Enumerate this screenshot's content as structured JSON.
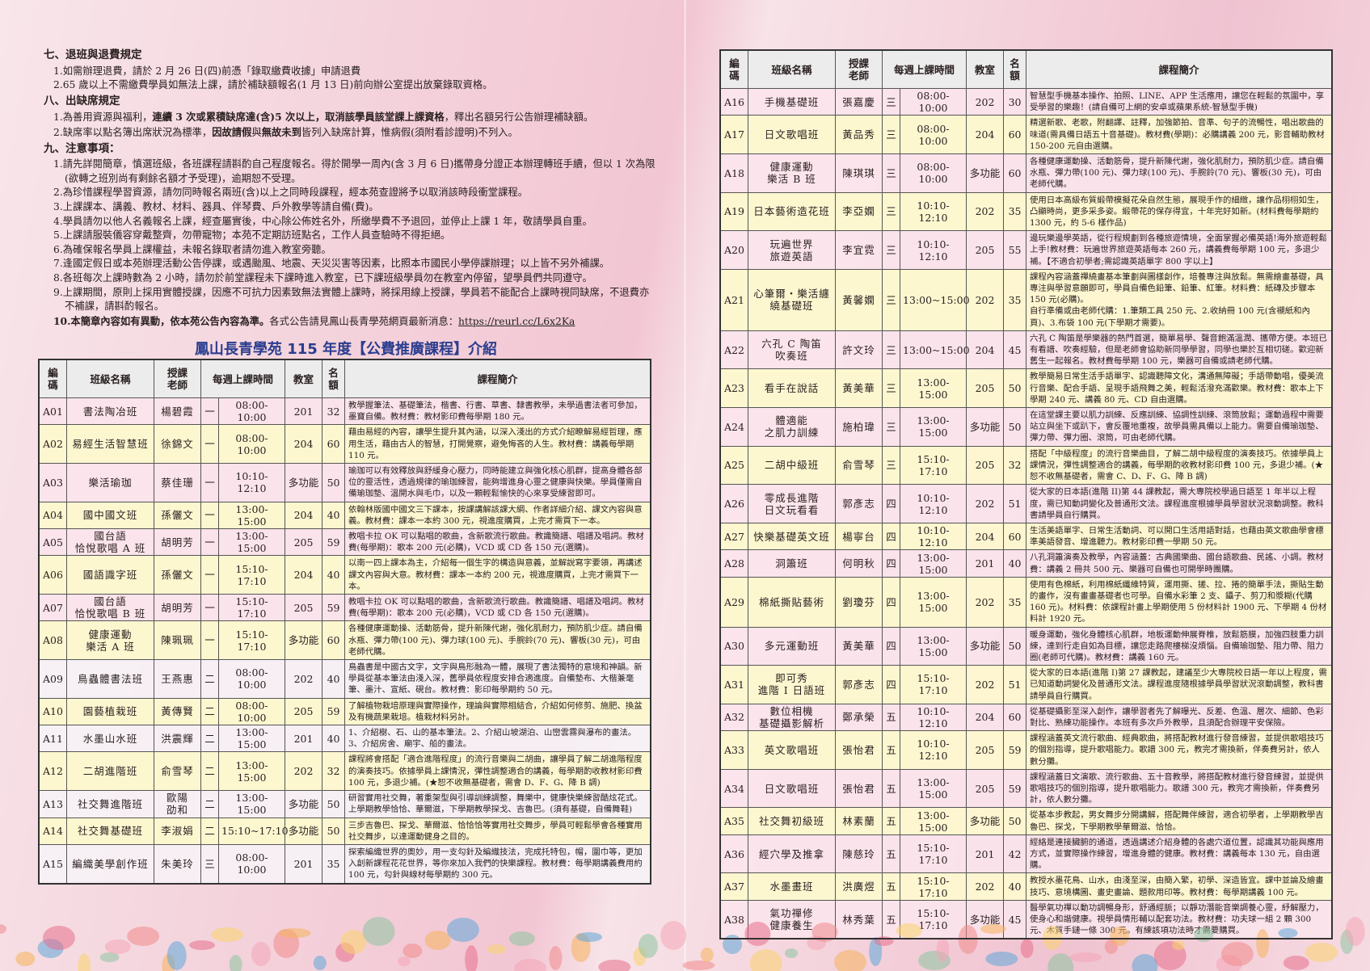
{
  "rules": {
    "sections": [
      {
        "heading": "七、退班與退費規定",
        "items": [
          {
            "text": "1.如需辦理退費，請於 2 月 26 日(四)前憑「錄取繳費收據」申請退費"
          },
          {
            "text": "2.65 歲以上不需繳費學員如無法上課，請於補缺額報名(1 月 13 日)前向辦公室提出放棄錄取資格。"
          }
        ]
      },
      {
        "heading": "八、出缺席規定",
        "items": [
          {
            "pre": "1.為善用資源與福利，",
            "bold": "連續 3 次或累積缺席達(含)5 次以上，取消該學員該堂課上課資格",
            "post": "，釋出名額另行公告辦理補缺額。"
          },
          {
            "pre": "2.缺席率以點名簿出席狀況為標準，",
            "bold": "因故請假",
            "mid": "與",
            "bold2": "無故未到",
            "post": "皆列入缺席計算，惟病假(須附看診證明)不列入。"
          }
        ]
      },
      {
        "heading": "九、注意事項：",
        "items": [
          {
            "text": "1.請先詳閱簡章，慎選班級，各班課程請斟酌自己程度報名。得於開學一周內(含 3 月 6 日)攜帶身分證正本辦理轉班手續，但以 1 次為限(欲轉之班別尚有剩餘名額才予受理)，逾期恕不受理。"
          },
          {
            "text": "2.為珍惜課程學習資源，請勿同時報名兩班(含)以上之同時段課程，經本苑查證將予以取消該時段衝堂課程。"
          },
          {
            "text": "3.上課課本、講義、教材、材料、器具、伴琴費、戶外教學等請自備(費)。"
          },
          {
            "text": "4.學員請勿以他人名義報名上課，經查屬實後，中心除公佈姓名外，所繳學費不予退回，並停止上課 1 年，敬請學員自重。"
          },
          {
            "text": "5.上課請服裝儀容穿戴整齊，勿帶寵物；本苑不定期訪班點名，工作人員查驗時不得拒絕。"
          },
          {
            "text": "6.為確保報名學員上課權益，未報名錄取者請勿進入教室旁聽。"
          },
          {
            "text": "7.逢國定假日或本苑辦理活動公告停課，或遇颱風、地震、天災災害等因素，比照本市國民小學停課辦理；以上皆不另外補課。"
          },
          {
            "text": "8.各班每次上課時數為 2 小時，請勿於前堂課程未下課時進入教室，已下課班級學員勿在教室內停留，望學員們共同遵守。"
          },
          {
            "text": "9.上課期間，原則上採用實體授課，因應不可抗力因素致無法實體上課時，將採用線上授課，學員若不能配合上課時視同缺席，不退費亦不補課，請斟酌報名。"
          },
          {
            "bold": "10.本簡章內容如有異動，依本苑公告內容為準。",
            "post": "各式公告請見鳳山長青學苑網頁最新消息：",
            "link": "https://reurl.cc/L6x2Ka"
          }
        ]
      }
    ]
  },
  "title": "鳳山長青學苑 115 年度【公費推廣課程】介紹",
  "table_headers": {
    "code": "編碼",
    "name": "班級名稱",
    "teacher": "授課老師",
    "time": "每週上課時間",
    "room": "教室",
    "quota": "名額",
    "desc": "課程簡介"
  },
  "colors": {
    "title": "#2a3d8f",
    "row_pink": "#fae2ea",
    "row_yellow": "#fdf7cd",
    "header": "#ececec"
  },
  "courses_left": [
    {
      "code": "A01",
      "name": "書法陶冶班",
      "teacher": "楊碧霞",
      "day": "一",
      "time": "08:00-10:00",
      "room": "201",
      "quota": "32",
      "desc": "教學握筆法、基礎筆法，楷書、行書、草書、隸書教學，未學過書法者可參加，墨寶自備。教材費：教材影印費每學期 180 元。"
    },
    {
      "code": "A02",
      "name": "易經生活智慧班",
      "teacher": "徐錦文",
      "day": "一",
      "time": "08:00-10:00",
      "room": "204",
      "quota": "60",
      "desc": "藉由易經的內容，讓學生提升其內涵，以深入淺出的方式介紹瞭解易經哲理，應用生活，藉由古人的智慧，打開覺察，避免悔吝的人生。教材費：講義每學期 110 元。"
    },
    {
      "code": "A03",
      "name": "樂活瑜珈",
      "teacher": "蔡佳珊",
      "day": "一",
      "time": "10:10-12:10",
      "room": "多功能",
      "quota": "50",
      "desc": "瑜珈可以有效釋放與舒緩身心壓力，同時能建立與強化核心肌群，提高身體各部位的靈活性，透過規律的瑜珈練習，能夠增進身心靈之健康與快樂。學員僅需自備瑜珈墊、溫開水與毛巾，以及一顆輕鬆愉快的心來享受練習即可。"
    },
    {
      "code": "A04",
      "name": "國中國文班",
      "teacher": "孫儷文",
      "day": "一",
      "time": "13:00-15:00",
      "room": "204",
      "quota": "40",
      "desc": "依翰林版國中國文三下課本，按課講解該課大綱、作者詳細介紹、課文內容與意義。教材費：課本一本約 300 元，視進度購買，上完才需買下一本。"
    },
    {
      "code": "A05",
      "name": "國台語\n恰悅歌唱 A 班",
      "teacher": "胡明芳",
      "day": "一",
      "time": "13:00-15:00",
      "room": "205",
      "quota": "59",
      "desc": "教唱卡拉 OK 可以點唱的歌曲，含新歌流行歌曲。教識簡譜、唱譜及唱詞。教材費(每學期)：歌本 200 元(必購)，VCD 或 CD 各 150 元(選購)。"
    },
    {
      "code": "A06",
      "name": "國語識字班",
      "teacher": "孫儷文",
      "day": "一",
      "time": "15:10-17:10",
      "room": "204",
      "quota": "40",
      "desc": "以南一四上課本為主，介紹每一個生字的構造與意義，並解說寫字要領，再講述課文內容與大意。教材費：課本一本約 200 元，視進度購買，上完才需買下一本。"
    },
    {
      "code": "A07",
      "name": "國台語\n恰悅歌唱 B 班",
      "teacher": "胡明芳",
      "day": "一",
      "time": "15:10-17:10",
      "room": "205",
      "quota": "59",
      "desc": "教唱卡拉 OK 可以點唱的歌曲，含新歌流行歌曲。教識簡譜、唱譜及唱詞。教材費(每學期)：歌本 200 元(必購)，VCD 或 CD 各 150 元(選購)。"
    },
    {
      "code": "A08",
      "name": "健康運動\n樂活 A 班",
      "teacher": "陳珮珮",
      "day": "一",
      "time": "15:10-17:10",
      "room": "多功能",
      "quota": "60",
      "desc": "各種健康運動操、活動筋骨，提升新陳代謝，強化肌耐力，預防肌少症。請自備水瓶、彈力帶(100 元)、彈力球(100 元)、手腕鈴(70 元)、響板(30 元)，可由老師代購。"
    },
    {
      "code": "A09",
      "name": "鳥蟲體書法班",
      "teacher": "王燕惠",
      "day": "二",
      "time": "08:00-10:00",
      "room": "202",
      "quota": "40",
      "desc": "鳥蟲書是中國古文字，文字與鳥形融為一體，展現了書法獨特的意境和神韻。新學員從基本筆法由淺入深，舊學員依程度安排合適進度。自備墊布、大楷兼毫筆、墨汁、宣紙、硯台。教材費：影印每學期約 50 元。"
    },
    {
      "code": "A10",
      "name": "園藝植栽班",
      "teacher": "黃傳賢",
      "day": "二",
      "time": "08:00-10:00",
      "room": "205",
      "quota": "59",
      "desc": "了解植物栽培原理與實際操作，理論與實際相結合，介紹如何修剪、施肥、換盆及有機蔬果栽培。植栽材料另計。"
    },
    {
      "code": "A11",
      "name": "水墨山水班",
      "teacher": "洪震輝",
      "day": "二",
      "time": "13:00-15:00",
      "room": "201",
      "quota": "40",
      "desc": "1、介紹樹、石、山的基本筆法。2、介紹山坡湖泊、山巒雲霧與瀑布的畫法。3、介紹房舍、廟宇、船的畫法。"
    },
    {
      "code": "A12",
      "name": "二胡進階班",
      "teacher": "俞雪琴",
      "day": "二",
      "time": "13:00-15:00",
      "room": "202",
      "quota": "32",
      "desc": "課程將會搭配「適合進階程度」的流行音樂與二胡曲，讓學員了解二胡進階程度的演奏技巧。依據學員上課情況，彈性調整適合的講義，每學期酌收教材影印費 100 元，多退少補。(★恕不收無基礎者，需會 D、F、G、降 B 調)"
    },
    {
      "code": "A13",
      "name": "社交舞進階班",
      "teacher": "歐陽\n劭和",
      "day": "二",
      "time": "13:00-15:00",
      "room": "多功能",
      "quota": "50",
      "desc": "研習實用社交舞，著重架型與引導訓練調整，舞樂中，健康快樂練習酷炫花式。上學期教學恰恰、華爾滋，下學期教學探戈、吉魯巴。(須有基礎，自備舞鞋)"
    },
    {
      "code": "A14",
      "name": "社交舞基礎班",
      "teacher": "李淑娟",
      "day": "二",
      "time": "15:10~17:10",
      "room": "多功能",
      "quota": "50",
      "desc": "三步吉魯巴、探戈、華爾滋、恰恰恰等實用社交舞步，學員可輕鬆學會各種實用社交舞步，以達運動健身之目的。"
    },
    {
      "code": "A15",
      "name": "編織美學創作班",
      "teacher": "朱美玲",
      "day": "三",
      "time": "08:00-10:00",
      "room": "201",
      "quota": "35",
      "desc": "探索編織世界的奧妙，用一支勾針及編織技法，完成托特包，帽，圍巾等，更加入創新課程花花世界，等你來加入我們的快樂課程。教材費：每學期講義費用約 100 元，勾針與線材每學期約 300 元。"
    }
  ],
  "courses_right": [
    {
      "code": "A16",
      "name": "手機基礎班",
      "teacher": "張嘉慶",
      "day": "三",
      "time": "08:00-10:00",
      "room": "202",
      "quota": "30",
      "desc": "智慧型手機基本操作、拍照、LINE、APP 生活應用，讓您在輕鬆的氛圍中，享受學習的樂趣！(請自備可上網的安卓或蘋果系統-智慧型手機)"
    },
    {
      "code": "A17",
      "name": "日文歌唱班",
      "teacher": "黃品秀",
      "day": "三",
      "time": "08:00-10:00",
      "room": "204",
      "quota": "60",
      "desc": "精選新歌、老歌，附翻譯、註釋，加強節拍、音準、句子的流暢性，唱出歌曲的味道(需具備日語五十音基礎)。教材費(學期)：必購講義 200 元，影音輔助教材 150-200 元自由選購。"
    },
    {
      "code": "A18",
      "name": "健康運動\n樂活 B 班",
      "teacher": "陳琪琪",
      "day": "三",
      "time": "08:00-10:00",
      "room": "多功能",
      "quota": "60",
      "desc": "各種健康運動操、活動筋骨，提升新陳代謝，強化肌耐力，預防肌少症。請自備水瓶、彈力帶(100 元)、彈力球(100 元)、手腕鈴(70 元)、響板(30 元)，可由老師代購。"
    },
    {
      "code": "A19",
      "name": "日本藝術造花班",
      "teacher": "李亞嫻",
      "day": "三",
      "time": "10:10-12:10",
      "room": "202",
      "quota": "35",
      "desc": "使用日本高級布質緞帶模擬花朵自然生態，展現手作的細緻，讓作品栩栩如生，凸顯時尚，更多采多姿。緞帶花的保存得宜，十年完好如新。(材料費每學期約 1300 元，約 5-6 樣作品)"
    },
    {
      "code": "A20",
      "name": "玩遍世界\n旅遊英語",
      "teacher": "李宜霓",
      "day": "三",
      "time": "10:10-12:10",
      "room": "205",
      "quota": "55",
      "desc": "邊玩樂邊學英語，從行程規劃到各種旅遊情境，全面掌握必備英語!海外旅遊輕鬆上手!教材費：玩遍世界旅遊英語每本 260 元，講義費每學期 100 元，多退少補。【不適合初學者;需認識英語單字 800 字以上】"
    },
    {
      "code": "A21",
      "name": "心筆爾‧樂活纏\n繞基礎班",
      "teacher": "黃馨嫻",
      "day": "三",
      "time": "13:00~15:00",
      "room": "202",
      "quota": "35",
      "desc": "課程內容涵蓋禪繞畫基本筆劃與圖樣創作，培養專注與放鬆。無需繪畫基礎，具專注與學習意願即可，學員自備色鉛筆、鉛筆、紅筆。材料費：紙磚及步驟本 150 元(必購)。\n自行準備或由老師代購：1.筆類工具 250 元、2.收納冊 100 元(含襯紙和內頁)、3.布袋 100 元(下學期才需要)。"
    },
    {
      "code": "A22",
      "name": "六孔 C 陶笛\n吹奏班",
      "teacher": "許文玲",
      "day": "三",
      "time": "13:00~15:00",
      "room": "204",
      "quota": "45",
      "desc": "六孔 C 陶笛是學樂器的熱門首選，簡單易學、聲音飽滿溫潤、攜帶方便。本班已有看譜、吹奏經驗，但是老師會協助新同學學習，同學也樂於互相切磋。歡迎新舊生一起報名。教材費每學期 100 元，樂器可自備或請老師代購。"
    },
    {
      "code": "A23",
      "name": "看手在說話",
      "teacher": "黃美華",
      "day": "三",
      "time": "13:00-15:00",
      "room": "205",
      "quota": "50",
      "desc": "教學簡易日常生活手語單字、認識聽障文化，溝通無障礙；手語帶動唱，優美流行音樂、配合手語、呈現手語飛舞之美，輕鬆活潑充滿歡樂。教材費：歌本上下學期 240 元、講義 80 元、CD 自由選購。"
    },
    {
      "code": "A24",
      "name": "體適能\n之肌力訓練",
      "teacher": "施柏瑋",
      "day": "三",
      "time": "13:00-15:00",
      "room": "多功能",
      "quota": "50",
      "desc": "在這堂課主要以肌力訓練、反應訓練、協調性訓練、滾筒放鬆；運動過程中需要站立與坐下或趴下，會反覆地重複，故學員需具備以上能力。需要自備瑜珈墊、彈力帶、彈力圈、滾筒，可由老師代購。"
    },
    {
      "code": "A25",
      "name": "二胡中級班",
      "teacher": "俞雪琴",
      "day": "三",
      "time": "15:10-17:10",
      "room": "205",
      "quota": "32",
      "desc": "搭配「中級程度」的流行音樂曲目，了解二胡中級程度的演奏技巧。依據學員上課情況，彈性調整適合的講義，每學期酌收教材影印費 100 元，多退少補。(★恕不收無基礎者，需會 C、D、F、G、降 B 調)"
    },
    {
      "code": "A26",
      "name": "零成長進階\n日文玩看看",
      "teacher": "郭彥志",
      "day": "四",
      "time": "10:10-12:10",
      "room": "202",
      "quota": "51",
      "desc": "從大家的日本語(進階 II)第 44 課教起，需大專院校學過日語至 1 年半以上程度，需已知動詞變化及普通形文法。課程進度根據學員學習狀況滾動調整。教科書請學員自行購買。"
    },
    {
      "code": "A27",
      "name": "快樂基礎英文班",
      "teacher": "楊寧台",
      "day": "四",
      "time": "10:10-12:10",
      "room": "204",
      "quota": "60",
      "desc": "生活美語單字、日常生活動詞、可以開口生活用語對話，也藉由英文歌曲學會標準美語發音、增進聽力。教材影印費一學期 50 元。"
    },
    {
      "code": "A28",
      "name": "洞簫班",
      "teacher": "何明秋",
      "day": "四",
      "time": "13:00-15:00",
      "room": "201",
      "quota": "40",
      "desc": "八孔洞簫演奏及教學，內容涵蓋：古典國樂曲、國台語歌曲、民謠、小調。教材費：講義 2 冊共 500 元、樂器可自備也可開學時團購。"
    },
    {
      "code": "A29",
      "name": "棉紙撕貼藝術",
      "teacher": "劉瓊芬",
      "day": "四",
      "time": "13:00-15:00",
      "room": "202",
      "quota": "35",
      "desc": "使用有色棉紙，利用棉紙纖維特質，運用撕、搓、拉、捲的簡單手法，撕貼生動的畫作，沒有畫畫基礎者也可學。自備水彩筆 2 支、鑷子、剪刀和漿糊(代購 160 元)。材料費：依課程計畫上學期使用 5 份材料計 1900 元、下學期 4 份材料計 1920 元。"
    },
    {
      "code": "A30",
      "name": "多元運動班",
      "teacher": "黃美華",
      "day": "四",
      "time": "13:00-15:00",
      "room": "多功能",
      "quota": "50",
      "desc": "暖身運動，強化身體核心肌群，地板運動伸展脊椎，放鬆筋膜，加強四肢重力訓練，達到行走自如為目標，讓您走路爬樓梯沒煩惱。自備瑜珈墊、阻力帶、阻力圈(老師可代購)。教材費：講義 160 元。"
    },
    {
      "code": "A31",
      "name": "即可秀\n進階 I 日語班",
      "teacher": "郭彥志",
      "day": "四",
      "time": "15:10-17:10",
      "room": "202",
      "quota": "51",
      "desc": "從大家的日本語(進階 I)第 27 課教起，建議至少大專院校日語一年以上程度，需已知道動詞變化及普通形文法。課程進度隨根據學員學習狀況滾動調整，教科書請學員自行購買。"
    },
    {
      "code": "A32",
      "name": "數位相機\n基礎攝影解析",
      "teacher": "鄭承榮",
      "day": "五",
      "time": "10:10-12:10",
      "room": "204",
      "quota": "60",
      "desc": "從基礎攝影至深入創作，讓學習者先了解曝光、反差、色溫、層次、細節、色彩對比、熟練功能操作。本班有多次戶外教學，且須配合辦理平安保險。"
    },
    {
      "code": "A33",
      "name": "英文歌唱班",
      "teacher": "張怡君",
      "day": "五",
      "time": "10:10-12:10",
      "room": "205",
      "quota": "59",
      "desc": "課程涵蓋英文流行歌曲、經典歌曲，將搭配教材進行發音練習，並提供歌唱技巧的個別指導，提升歌唱能力。歌譜 300 元，教完才需換新，伴奏費另計，依人數分攤。"
    },
    {
      "code": "A34",
      "name": "日文歌唱班",
      "teacher": "張怡君",
      "day": "五",
      "time": "13:00-15:00",
      "room": "205",
      "quota": "59",
      "desc": "課程涵蓋日文演歌、流行歌曲、五十音教學，將搭配教材進行發音練習，並提供歌唱技巧的個別指導，提升歌唱能力。歌譜 300 元，教完才需換新，伴奏費另計，依人數分攤。"
    },
    {
      "code": "A35",
      "name": "社交舞初級班",
      "teacher": "林素蘭",
      "day": "五",
      "time": "13:00-15:00",
      "room": "多功能",
      "quota": "50",
      "desc": "從基本步教起，男女舞步分開講解，搭配舞伴練習，適合初學者，上學期教學吉魯巴、探戈，下學期教學華爾滋、恰恰。"
    },
    {
      "code": "A36",
      "name": "經穴學及推拿",
      "teacher": "陳慈玲",
      "day": "五",
      "time": "15:10-17:10",
      "room": "201",
      "quota": "42",
      "desc": "經絡是連接臟腑的通道，透過講述介紹身體的各處穴道位置，認識其功能與應用方式，並實際操作練習，增進身體的健康。教材費：講義每本 130 元，自由選購。"
    },
    {
      "code": "A37",
      "name": "水墨畫班",
      "teacher": "洪廣煜",
      "day": "五",
      "time": "15:10-17:10",
      "room": "202",
      "quota": "40",
      "desc": "教授水墨花鳥、山水，由淺至深，由簡入繁，初學、深造皆宜。課中並論及繪畫技巧、意境構圖、畫史畫論、題款用印等。教材費：每學期講義 100 元。"
    },
    {
      "code": "A38",
      "name": "氣功禪修\n健康養生",
      "teacher": "林秀葉",
      "day": "五",
      "time": "15:10-17:10",
      "room": "多功能",
      "quota": "45",
      "desc": "醫學氣功禪以動功調暢身形，舒通經脈；以靜功潛能音樂調養心靈，紓解壓力，使身心和諧健康。視學員情形輔以配套功法。教材費：功夫球一組 2 顆 300 元、木質手鏈一條 300 元。有練該項功法時才需要購買。"
    }
  ]
}
